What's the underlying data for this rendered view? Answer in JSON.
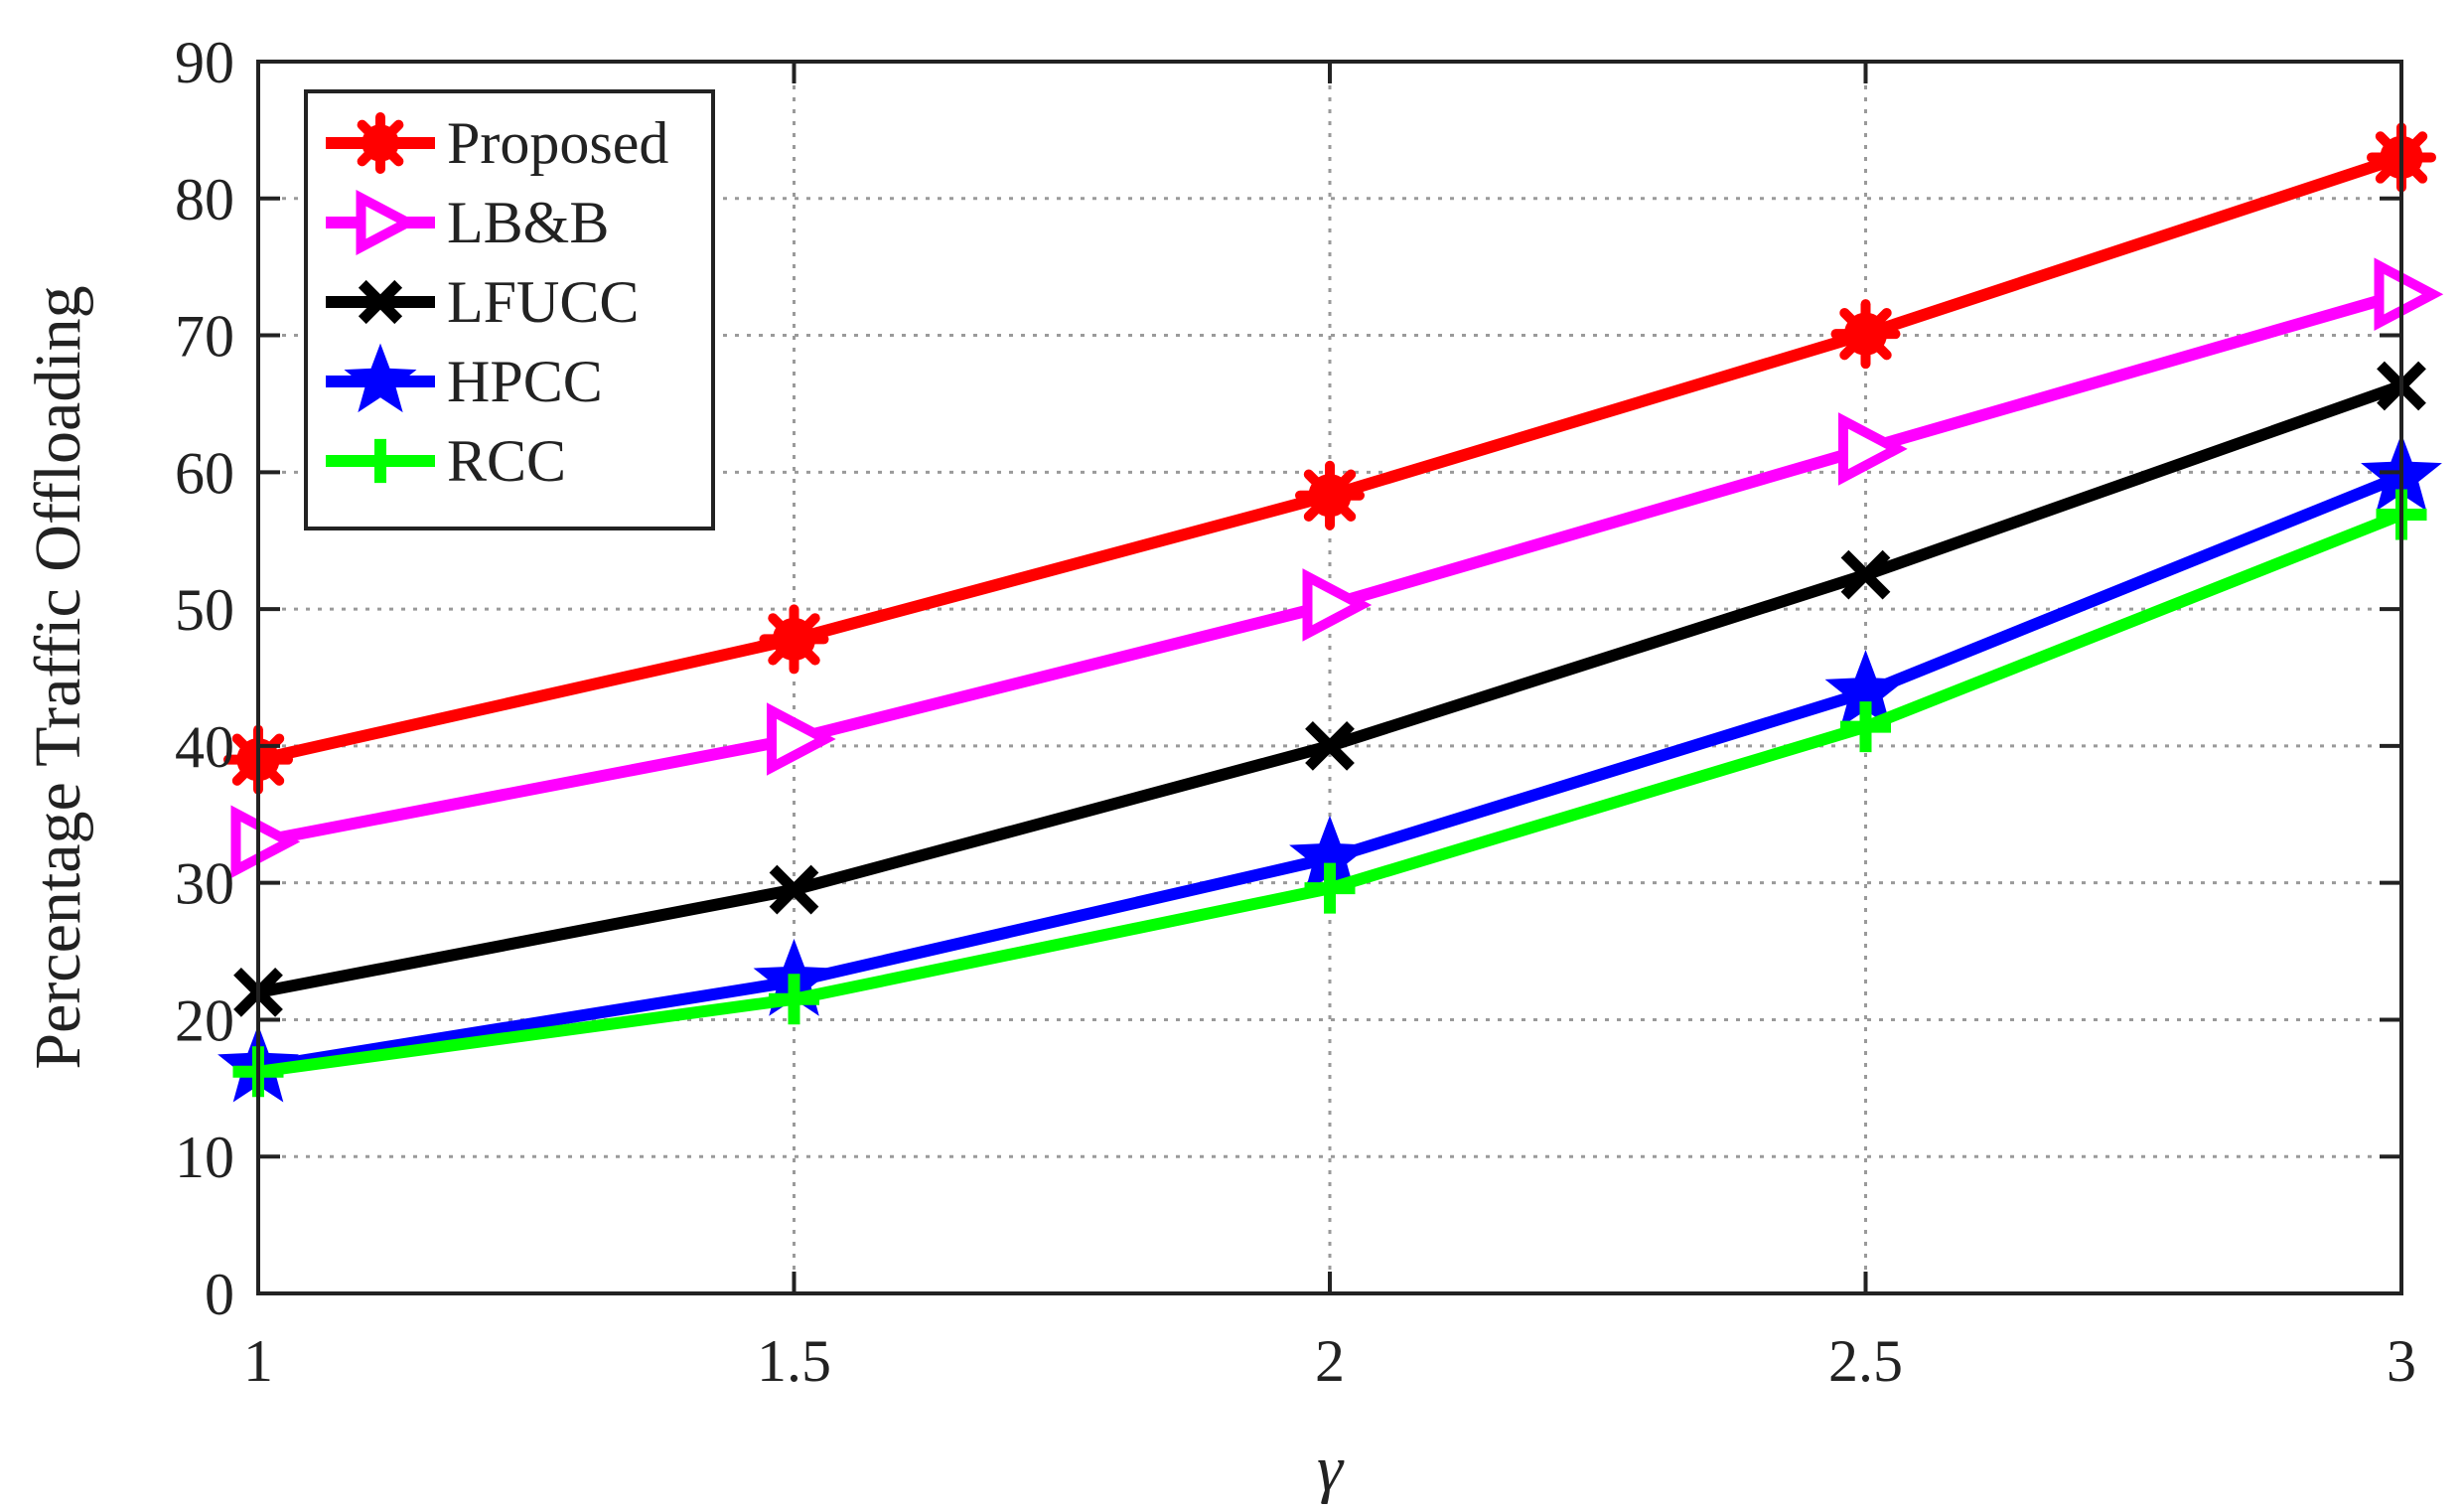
{
  "chart_data": {
    "type": "line",
    "title": "",
    "xlabel": "γ",
    "ylabel": "Percentage Traffic Offloading",
    "x": [
      1,
      1.5,
      2,
      2.5,
      3
    ],
    "x_tick_labels": [
      "1",
      "1.5",
      "2",
      "2.5",
      "3"
    ],
    "y_tick_labels": [
      "0",
      "10",
      "20",
      "30",
      "40",
      "50",
      "60",
      "70",
      "80",
      "90"
    ],
    "xlim": [
      1,
      3
    ],
    "ylim": [
      0,
      90
    ],
    "grid": true,
    "legend_position": "top-left",
    "series": [
      {
        "name": "Proposed",
        "color": "#ff0000",
        "marker": "asterisk",
        "values": [
          39,
          47.8,
          58.3,
          70.1,
          83
        ]
      },
      {
        "name": "LB&B",
        "color": "#ff00ff",
        "marker": "triangle-right",
        "values": [
          33,
          40.5,
          50.3,
          61.7,
          73
        ]
      },
      {
        "name": "LFUCC",
        "color": "#000000",
        "marker": "x",
        "values": [
          22,
          29.5,
          40,
          52.5,
          66.3
        ]
      },
      {
        "name": "HPCC",
        "color": "#0000ff",
        "marker": "star",
        "values": [
          16.5,
          22.8,
          31.8,
          43.9,
          59.7
        ]
      },
      {
        "name": "RCC",
        "color": "#00ff00",
        "marker": "plus",
        "values": [
          16.2,
          21.5,
          29.6,
          41.4,
          56.9
        ]
      }
    ]
  }
}
